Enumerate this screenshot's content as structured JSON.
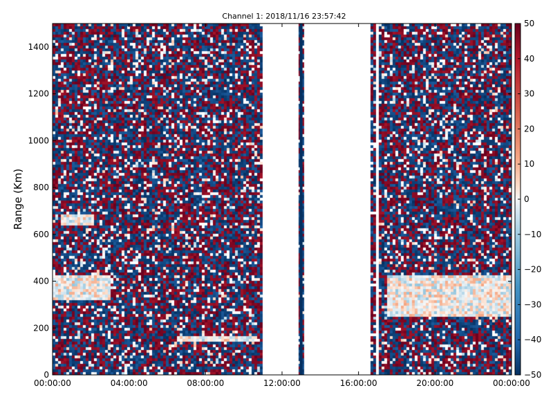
{
  "chart_data": {
    "type": "heatmap",
    "title": "Channel 1: 2018/11/16 23:57:42",
    "xlabel": "",
    "ylabel": "Range (Km)",
    "x_ticks": [
      "00:00:00",
      "04:00:00",
      "08:00:00",
      "12:00:00",
      "16:00:00",
      "20:00:00",
      "00:00:00"
    ],
    "x_range_hours": [
      0,
      24
    ],
    "ylim": [
      0,
      1500
    ],
    "y_ticks": [
      0,
      200,
      400,
      600,
      800,
      1000,
      1200,
      1400
    ],
    "colorbar": {
      "ticks": [
        50,
        40,
        30,
        20,
        10,
        0,
        -10,
        -20,
        -30,
        -40,
        -50
      ],
      "range": [
        -50,
        50
      ],
      "colormap": "red-white-blue (diverging)",
      "colors": {
        "high": "#67001f",
        "mid": "#f7f7f7",
        "low": "#053061"
      }
    },
    "grid": false,
    "data_gaps_hours": [
      [
        11.0,
        12.9
      ],
      [
        13.1,
        16.6
      ],
      [
        16.95,
        17.05
      ]
    ],
    "features": [
      {
        "kind": "echo band",
        "time_hours": [
          0.0,
          3.0
        ],
        "range_km": [
          320,
          420
        ]
      },
      {
        "kind": "echo band",
        "time_hours": [
          0.5,
          2.2
        ],
        "range_km": [
          640,
          690
        ]
      },
      {
        "kind": "echo band",
        "time_hours": [
          17.5,
          24.0
        ],
        "range_km": [
          250,
          420
        ]
      },
      {
        "kind": "echo streak",
        "time_hours": [
          6.5,
          10.5
        ],
        "range_km": [
          140,
          160
        ]
      }
    ]
  }
}
